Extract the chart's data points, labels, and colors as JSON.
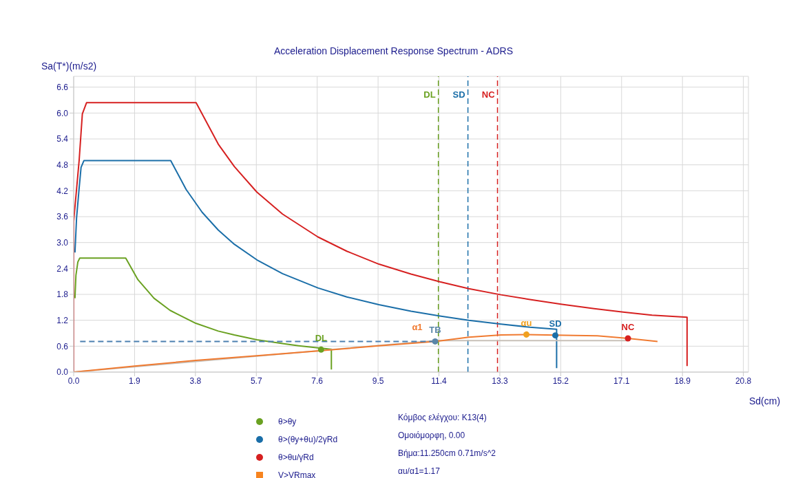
{
  "chart_data": {
    "type": "line",
    "title": "Acceleration Displacement Response Spectrum - ADRS",
    "xlabel": "Sd(cm)",
    "ylabel": "Sa(T*)(m/s2)",
    "xlim": [
      0,
      21.0
    ],
    "ylim": [
      0,
      6.85
    ],
    "xticks": [
      {
        "value": 0,
        "label": "0.0"
      },
      {
        "value": 1.895,
        "label": "1.9"
      },
      {
        "value": 3.789,
        "label": "3.8"
      },
      {
        "value": 5.684,
        "label": "5.7"
      },
      {
        "value": 7.579,
        "label": "7.6"
      },
      {
        "value": 9.474,
        "label": "9.5"
      },
      {
        "value": 11.368,
        "label": "11.4"
      },
      {
        "value": 13.263,
        "label": "13.3"
      },
      {
        "value": 15.158,
        "label": "15.2"
      },
      {
        "value": 17.052,
        "label": "17.1"
      },
      {
        "value": 18.947,
        "label": "18.9"
      },
      {
        "value": 20.842,
        "label": "20.8"
      }
    ],
    "yticks": [
      {
        "value": 0,
        "label": "0.0"
      },
      0.6,
      1.2,
      1.8,
      2.4,
      {
        "value": 3,
        "label": "3.0"
      },
      3.6,
      4.2,
      4.8,
      5.4,
      {
        "value": 6,
        "label": "6.0"
      },
      6.6
    ],
    "grid": true,
    "legend": "bottom",
    "ref_lines": [
      {
        "axis": "x",
        "value": 11.35,
        "label": "DL",
        "color": "#6aa121",
        "line_style": "dashed"
      },
      {
        "axis": "x",
        "value": 12.27,
        "label": "SD",
        "color": "#1a6ea8",
        "line_style": "dashed"
      },
      {
        "axis": "x",
        "value": 13.19,
        "label": "NC",
        "color": "#d62020",
        "line_style": "dashed"
      }
    ],
    "series": [
      {
        "color": "#d62020",
        "x": [
          0,
          0,
          0.06,
          0.17,
          0.27,
          0.4,
          3.81,
          4.5,
          5.0,
          5.7,
          6.5,
          7.6,
          8.5,
          9.5,
          10.5,
          11.4,
          12.3,
          13.3,
          14.2,
          15.2,
          16.2,
          17.1,
          18.0,
          19.09,
          19.09
        ],
        "values": [
          0,
          3.49,
          3.99,
          4.9,
          5.98,
          6.24,
          6.24,
          5.28,
          4.76,
          4.17,
          3.66,
          3.13,
          2.8,
          2.5,
          2.27,
          2.09,
          1.93,
          1.79,
          1.68,
          1.57,
          1.47,
          1.39,
          1.32,
          1.27,
          0.14
        ]
      },
      {
        "color": "#1a6ea8",
        "x": [
          0.04,
          0.09,
          0.17,
          0.23,
          0.32,
          3.02,
          3.5,
          4.0,
          4.5,
          5.0,
          5.7,
          6.5,
          7.6,
          8.5,
          9.5,
          10.5,
          11.4,
          12.3,
          13.3,
          14.2,
          15.03,
          15.03
        ],
        "values": [
          2.77,
          3.57,
          4.26,
          4.74,
          4.9,
          4.9,
          4.23,
          3.7,
          3.29,
          2.96,
          2.6,
          2.28,
          1.95,
          1.74,
          1.56,
          1.41,
          1.3,
          1.2,
          1.11,
          1.04,
          0.99,
          0.09
        ]
      },
      {
        "color": "#6aa121",
        "x": [
          0.04,
          0.07,
          0.13,
          0.19,
          1.62,
          2.0,
          2.5,
          3.0,
          3.8,
          4.5,
          5.0,
          5.7,
          6.5,
          7.0,
          7.6,
          8.02,
          8.02
        ],
        "values": [
          1.71,
          2.24,
          2.55,
          2.64,
          2.64,
          2.14,
          1.71,
          1.43,
          1.13,
          0.95,
          0.86,
          0.75,
          0.66,
          0.61,
          0.56,
          0.53,
          0.06
        ]
      },
      {
        "color": "#c8c0b8",
        "x": [
          0,
          11.25,
          17.25
        ],
        "values": [
          0,
          0.73,
          0.73
        ]
      },
      {
        "color": "#f07a30",
        "x": [
          0,
          1.9,
          3.8,
          5.7,
          7.6,
          9.5,
          11.25,
          12.3,
          13.3,
          14.09,
          15.6,
          16.3,
          17.25,
          18.17
        ],
        "values": [
          0,
          0.14,
          0.27,
          0.38,
          0.49,
          0.61,
          0.71,
          0.81,
          0.86,
          0.87,
          0.85,
          0.84,
          0.78,
          0.71
        ],
        "value_labels": [
          null,
          null,
          null,
          null,
          null,
          null,
          "α1",
          null,
          null,
          null,
          null,
          null,
          null,
          null
        ]
      },
      {
        "color": "#4a7fb0",
        "line_style": "dashed",
        "x": [
          0.2,
          11.25
        ],
        "values": [
          0.71,
          0.71
        ]
      },
      {
        "type": "scatter",
        "name": "θ>θy",
        "color": "#6aa121",
        "marker": "circle",
        "x": [
          7.7
        ],
        "values": [
          0.52
        ],
        "value_labels": [
          "DL"
        ]
      },
      {
        "type": "scatter",
        "name": "θ>(θy+θu)/2γRd",
        "color": "#1a6ea8",
        "marker": "circle",
        "x": [
          14.99
        ],
        "values": [
          0.85
        ],
        "value_labels": [
          "SD"
        ]
      },
      {
        "type": "scatter",
        "name": "θ>θu/γRd",
        "color": "#d62020",
        "marker": "circle",
        "x": [
          17.25
        ],
        "values": [
          0.78
        ],
        "value_labels": [
          "NC"
        ]
      },
      {
        "type": "scatter",
        "name": "V>VRmax",
        "color": "#f7841f",
        "marker": "square"
      },
      {
        "type": "scatter",
        "color": "#f0a020",
        "marker": "circle",
        "x": [
          14.09
        ],
        "values": [
          0.87
        ],
        "value_labels": [
          "αu"
        ]
      },
      {
        "type": "scatter",
        "color": "#5a86a8",
        "marker": "circle",
        "x": [
          11.25
        ],
        "values": [
          0.71
        ],
        "value_labels": [
          "TB"
        ]
      }
    ],
    "annotations": [
      "Κόμβος ελέγχου: K13(4)",
      "Ομοιόμορφη, 0.00",
      "Βήμα:11.250cm 0.71m/s^2",
      "αu/α1=1.17"
    ]
  }
}
